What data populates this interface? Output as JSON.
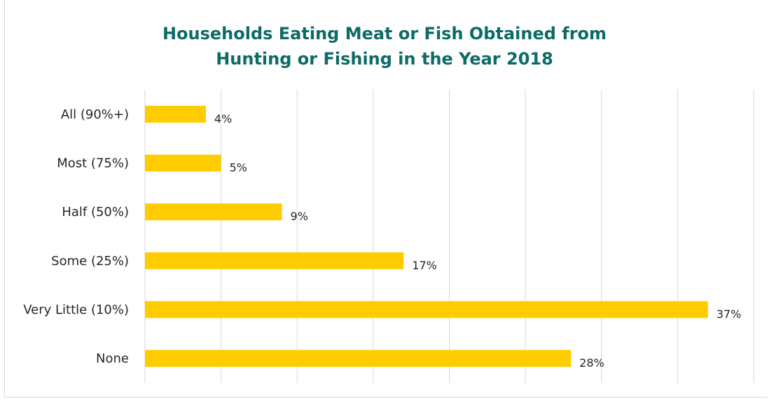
{
  "chart_data": {
    "type": "bar",
    "orientation": "horizontal",
    "title_lines": [
      "Households Eating Meat or Fish Obtained from",
      "Hunting or Fishing in the Year 2018"
    ],
    "categories": [
      "All (90%+)",
      "Most (75%)",
      "Half (50%)",
      "Some (25%)",
      "Very Little (10%)",
      "None"
    ],
    "values": [
      4,
      5,
      9,
      17,
      37,
      28
    ],
    "data_labels": [
      "4%",
      "5%",
      "9%",
      "17%",
      "37%",
      "28%"
    ],
    "xlim": [
      0,
      40
    ],
    "grid": true,
    "colors": {
      "bar": "#ffcc00",
      "title": "#0d6b66",
      "grid": "#d9d9d9"
    }
  }
}
